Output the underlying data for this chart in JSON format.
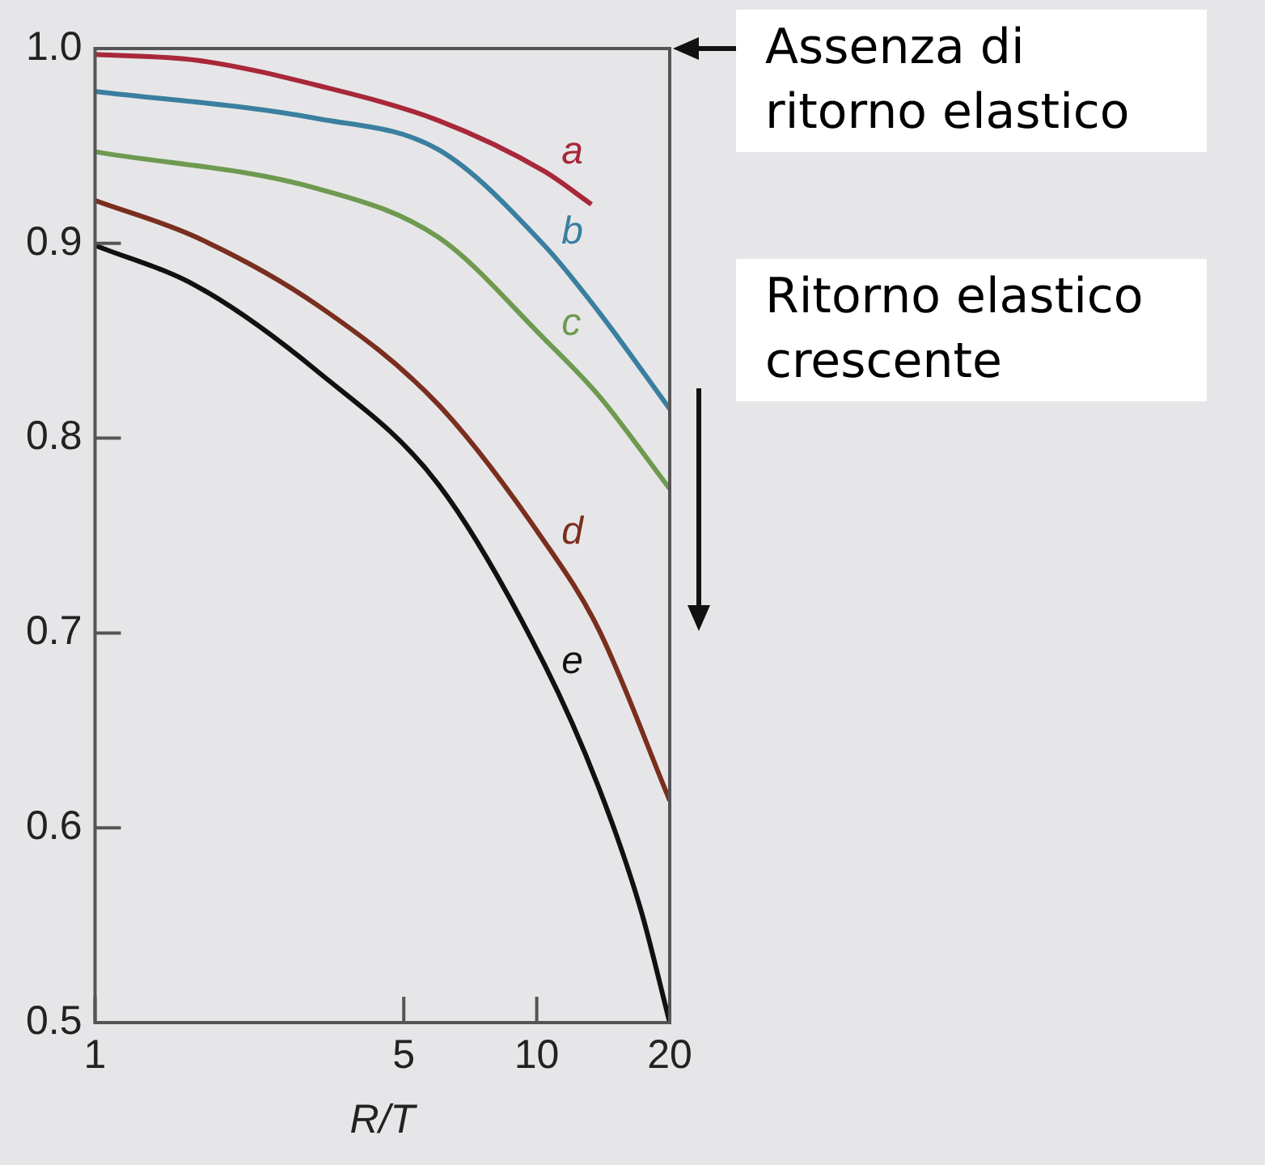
{
  "chart_data": {
    "type": "line",
    "xlabel": "R/T",
    "log": "x",
    "xlim": [
      1,
      20
    ],
    "xticks": [
      1,
      5,
      10,
      20
    ],
    "ylim": [
      0.5,
      1
    ],
    "yticks": [
      0.5,
      0.6,
      0.7,
      0.8,
      0.9,
      {
        "value": 1,
        "label": "1.0"
      }
    ],
    "grid": false,
    "legend": false,
    "marker": "none",
    "line_style": "solid",
    "annotations": [
      "Assenza di ritorno elastico",
      "Ritorno elastico crescente"
    ],
    "series": [
      {
        "name": "a",
        "color": "#a8283a",
        "x": [
          1,
          1.7,
          3.2,
          6,
          10.4,
          13.3
        ],
        "values": [
          0.997,
          0.994,
          0.981,
          0.963,
          0.937,
          0.92
        ]
      },
      {
        "name": "b",
        "color": "#3a7fa0",
        "x": [
          1,
          3.2,
          6,
          10.4,
          13.8,
          20
        ],
        "values": [
          0.978,
          0.964,
          0.948,
          0.899,
          0.865,
          0.815
        ]
      },
      {
        "name": "c",
        "color": "#6e9a50",
        "x": [
          1,
          3.2,
          6,
          10.4,
          13.8,
          20
        ],
        "values": [
          0.947,
          0.928,
          0.903,
          0.851,
          0.822,
          0.774
        ]
      },
      {
        "name": "d",
        "color": "#7a2e1e",
        "x": [
          1,
          1.7,
          3.2,
          6,
          10.4,
          13.8,
          20
        ],
        "values": [
          0.922,
          0.903,
          0.868,
          0.817,
          0.747,
          0.702,
          0.614
        ]
      },
      {
        "name": "e",
        "color": "#111111",
        "x": [
          1,
          1.7,
          3.2,
          6,
          10.4,
          13.8,
          17.2,
          20
        ],
        "values": [
          0.899,
          0.878,
          0.834,
          0.776,
          0.684,
          0.621,
          0.558,
          0.5
        ]
      }
    ]
  }
}
